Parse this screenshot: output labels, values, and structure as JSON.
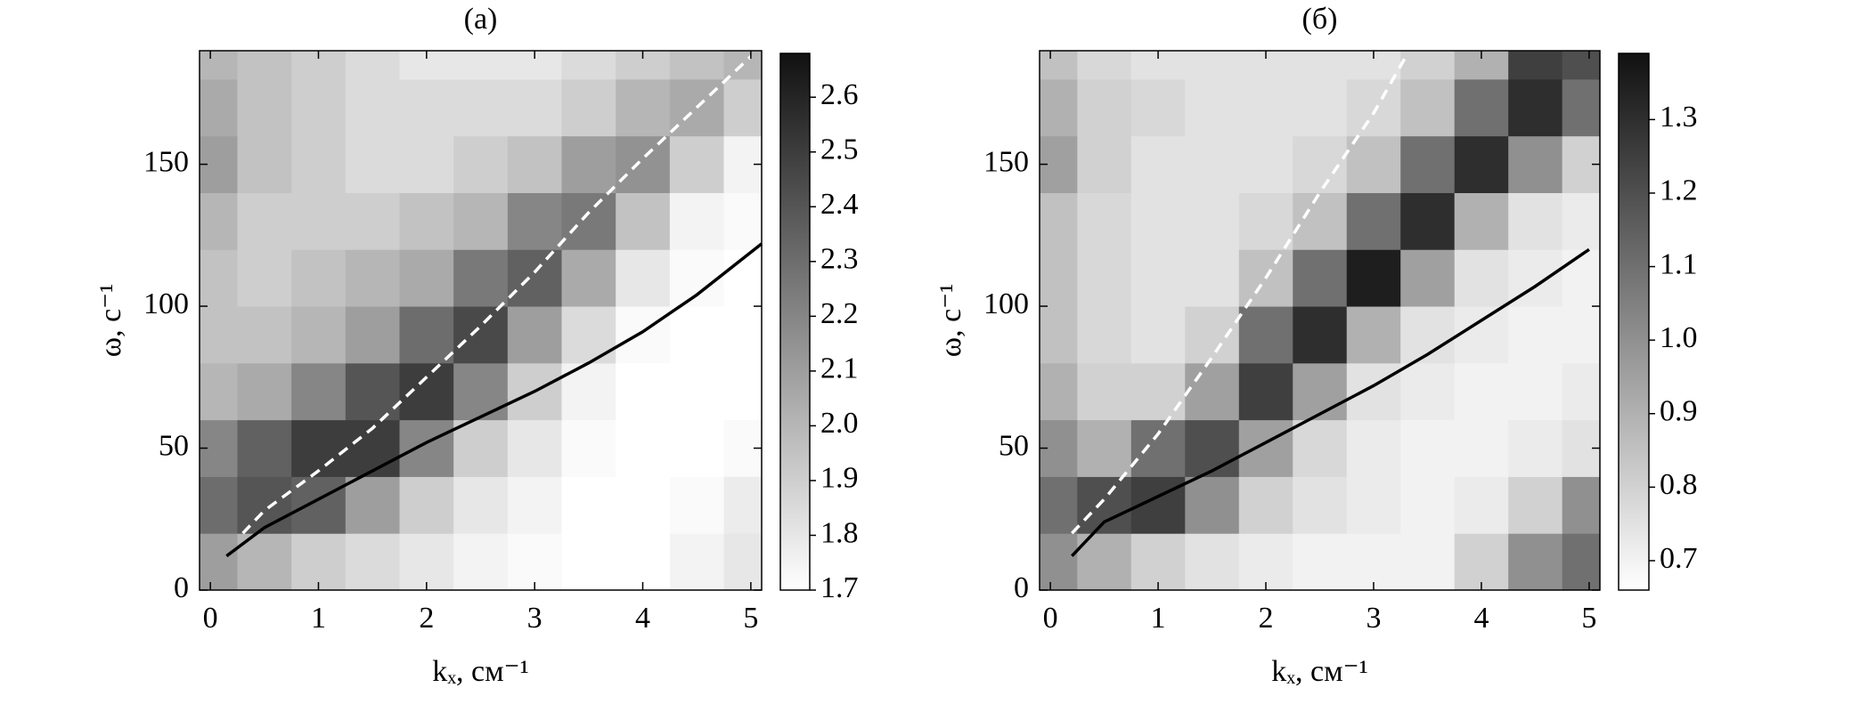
{
  "chart_data": [
    {
      "type": "heatmap",
      "title": "(а)",
      "x_label": "kₓ, см⁻¹",
      "y_label": "ω, с⁻¹",
      "xlim": [
        -0.1,
        5.1
      ],
      "xticks": [
        0,
        1,
        2,
        3,
        4,
        5
      ],
      "ylim": [
        0,
        190
      ],
      "yticks": [
        0,
        50,
        100,
        150
      ],
      "x_bins": [
        -0.1,
        0.25,
        0.75,
        1.25,
        1.75,
        2.25,
        2.75,
        3.25,
        3.75,
        4.25,
        4.75,
        5.1
      ],
      "y_bins": [
        0,
        20,
        40,
        60,
        80,
        100,
        120,
        140,
        160,
        180,
        190
      ],
      "z": [
        [
          2.1,
          2.0,
          1.9,
          1.85,
          1.8,
          1.75,
          1.72,
          1.7,
          1.7,
          1.75,
          1.8
        ],
        [
          2.3,
          2.4,
          2.35,
          2.1,
          1.9,
          1.8,
          1.75,
          1.7,
          1.7,
          1.72,
          1.78
        ],
        [
          2.2,
          2.35,
          2.5,
          2.5,
          2.2,
          1.9,
          1.8,
          1.72,
          1.7,
          1.7,
          1.72
        ],
        [
          2.0,
          2.05,
          2.2,
          2.4,
          2.5,
          2.2,
          1.9,
          1.75,
          1.7,
          1.7,
          1.7
        ],
        [
          1.95,
          1.95,
          2.0,
          2.1,
          2.3,
          2.45,
          2.1,
          1.85,
          1.72,
          1.7,
          1.7
        ],
        [
          1.95,
          1.9,
          1.95,
          2.0,
          2.05,
          2.25,
          2.35,
          2.05,
          1.8,
          1.72,
          1.7
        ],
        [
          2.0,
          1.9,
          1.9,
          1.9,
          1.95,
          2.0,
          2.2,
          2.25,
          1.95,
          1.75,
          1.72
        ],
        [
          2.1,
          1.95,
          1.9,
          1.85,
          1.85,
          1.9,
          1.95,
          2.1,
          2.15,
          1.9,
          1.75
        ],
        [
          2.05,
          1.95,
          1.9,
          1.85,
          1.85,
          1.85,
          1.85,
          1.9,
          2.0,
          2.05,
          1.9
        ],
        [
          2.0,
          1.95,
          1.9,
          1.85,
          1.8,
          1.8,
          1.8,
          1.85,
          1.9,
          1.95,
          2.0
        ]
      ],
      "colorbar": {
        "lim": [
          1.7,
          2.68
        ],
        "colormap": [
          "#ffffff",
          "#111111"
        ],
        "ticks": [
          1.7,
          1.8,
          1.9,
          {
            "value": 2.0,
            "label": "2.0"
          },
          2.1,
          2.2,
          2.3,
          2.4,
          2.5,
          2.6
        ]
      },
      "series": [
        {
          "color": "#000000",
          "style": "solid",
          "x": [
            0.15,
            0.5,
            1,
            1.5,
            2,
            2.5,
            3,
            3.5,
            4,
            4.5,
            5.1
          ],
          "values": [
            12,
            22,
            32,
            42,
            52,
            61,
            70,
            80,
            91,
            104,
            122
          ]
        },
        {
          "color": "#ffffff",
          "style": "dashed",
          "x": [
            0.3,
            0.5,
            1,
            1.5,
            2,
            2.5,
            3,
            3.5,
            4,
            4.5,
            5
          ],
          "values": [
            20,
            28,
            42,
            57,
            75,
            93,
            112,
            133,
            152,
            170,
            188
          ]
        }
      ]
    },
    {
      "type": "heatmap",
      "title": "(б)",
      "x_label": "kₓ, см⁻¹",
      "y_label": "ω, с⁻¹",
      "xlim": [
        -0.1,
        5.1
      ],
      "xticks": [
        0,
        1,
        2,
        3,
        4,
        5
      ],
      "ylim": [
        0,
        190
      ],
      "yticks": [
        0,
        50,
        100,
        150
      ],
      "x_bins": [
        -0.1,
        0.25,
        0.75,
        1.25,
        1.75,
        2.25,
        2.75,
        3.25,
        3.75,
        4.25,
        4.75,
        5.1
      ],
      "y_bins": [
        0,
        20,
        40,
        60,
        80,
        100,
        120,
        140,
        160,
        180,
        190
      ],
      "z": [
        [
          1.0,
          0.9,
          0.8,
          0.75,
          0.72,
          0.7,
          0.7,
          0.7,
          0.8,
          1.0,
          1.1
        ],
        [
          1.1,
          1.2,
          1.25,
          1.0,
          0.8,
          0.75,
          0.72,
          0.7,
          0.72,
          0.8,
          1.0
        ],
        [
          1.0,
          0.9,
          1.1,
          1.2,
          0.95,
          0.78,
          0.72,
          0.7,
          0.7,
          0.72,
          0.75
        ],
        [
          0.9,
          0.8,
          0.8,
          0.95,
          1.25,
          0.95,
          0.75,
          0.72,
          0.7,
          0.7,
          0.72
        ],
        [
          0.85,
          0.78,
          0.75,
          0.8,
          1.1,
          1.3,
          0.9,
          0.75,
          0.72,
          0.7,
          0.7
        ],
        [
          0.85,
          0.78,
          0.75,
          0.75,
          0.85,
          1.1,
          1.35,
          0.95,
          0.75,
          0.72,
          0.7
        ],
        [
          0.85,
          0.78,
          0.75,
          0.75,
          0.78,
          0.85,
          1.1,
          1.3,
          0.9,
          0.75,
          0.72
        ],
        [
          0.95,
          0.8,
          0.75,
          0.75,
          0.75,
          0.78,
          0.85,
          1.1,
          1.3,
          1.0,
          0.8
        ],
        [
          0.9,
          0.8,
          0.78,
          0.75,
          0.75,
          0.75,
          0.78,
          0.85,
          1.1,
          1.3,
          1.1
        ],
        [
          0.85,
          0.78,
          0.75,
          0.75,
          0.75,
          0.75,
          0.75,
          0.8,
          0.9,
          1.25,
          1.2
        ]
      ],
      "colorbar": {
        "lim": [
          0.66,
          1.39
        ],
        "colormap": [
          "#ffffff",
          "#111111"
        ],
        "ticks": [
          0.7,
          0.8,
          0.9,
          {
            "value": 1.0,
            "label": "1.0"
          },
          1.1,
          1.2,
          1.3
        ]
      },
      "series": [
        {
          "color": "#000000",
          "style": "solid",
          "x": [
            0.2,
            0.5,
            1,
            1.5,
            2,
            2.5,
            3,
            3.5,
            4,
            4.5,
            5
          ],
          "values": [
            12,
            24,
            33,
            42,
            52,
            62,
            72,
            83,
            95,
            107,
            120
          ]
        },
        {
          "color": "#ffffff",
          "style": "dashed",
          "x": [
            0.2,
            0.5,
            1,
            1.5,
            2,
            2.5,
            3,
            3.3
          ],
          "values": [
            20,
            32,
            55,
            82,
            110,
            140,
            168,
            188
          ]
        }
      ]
    }
  ]
}
